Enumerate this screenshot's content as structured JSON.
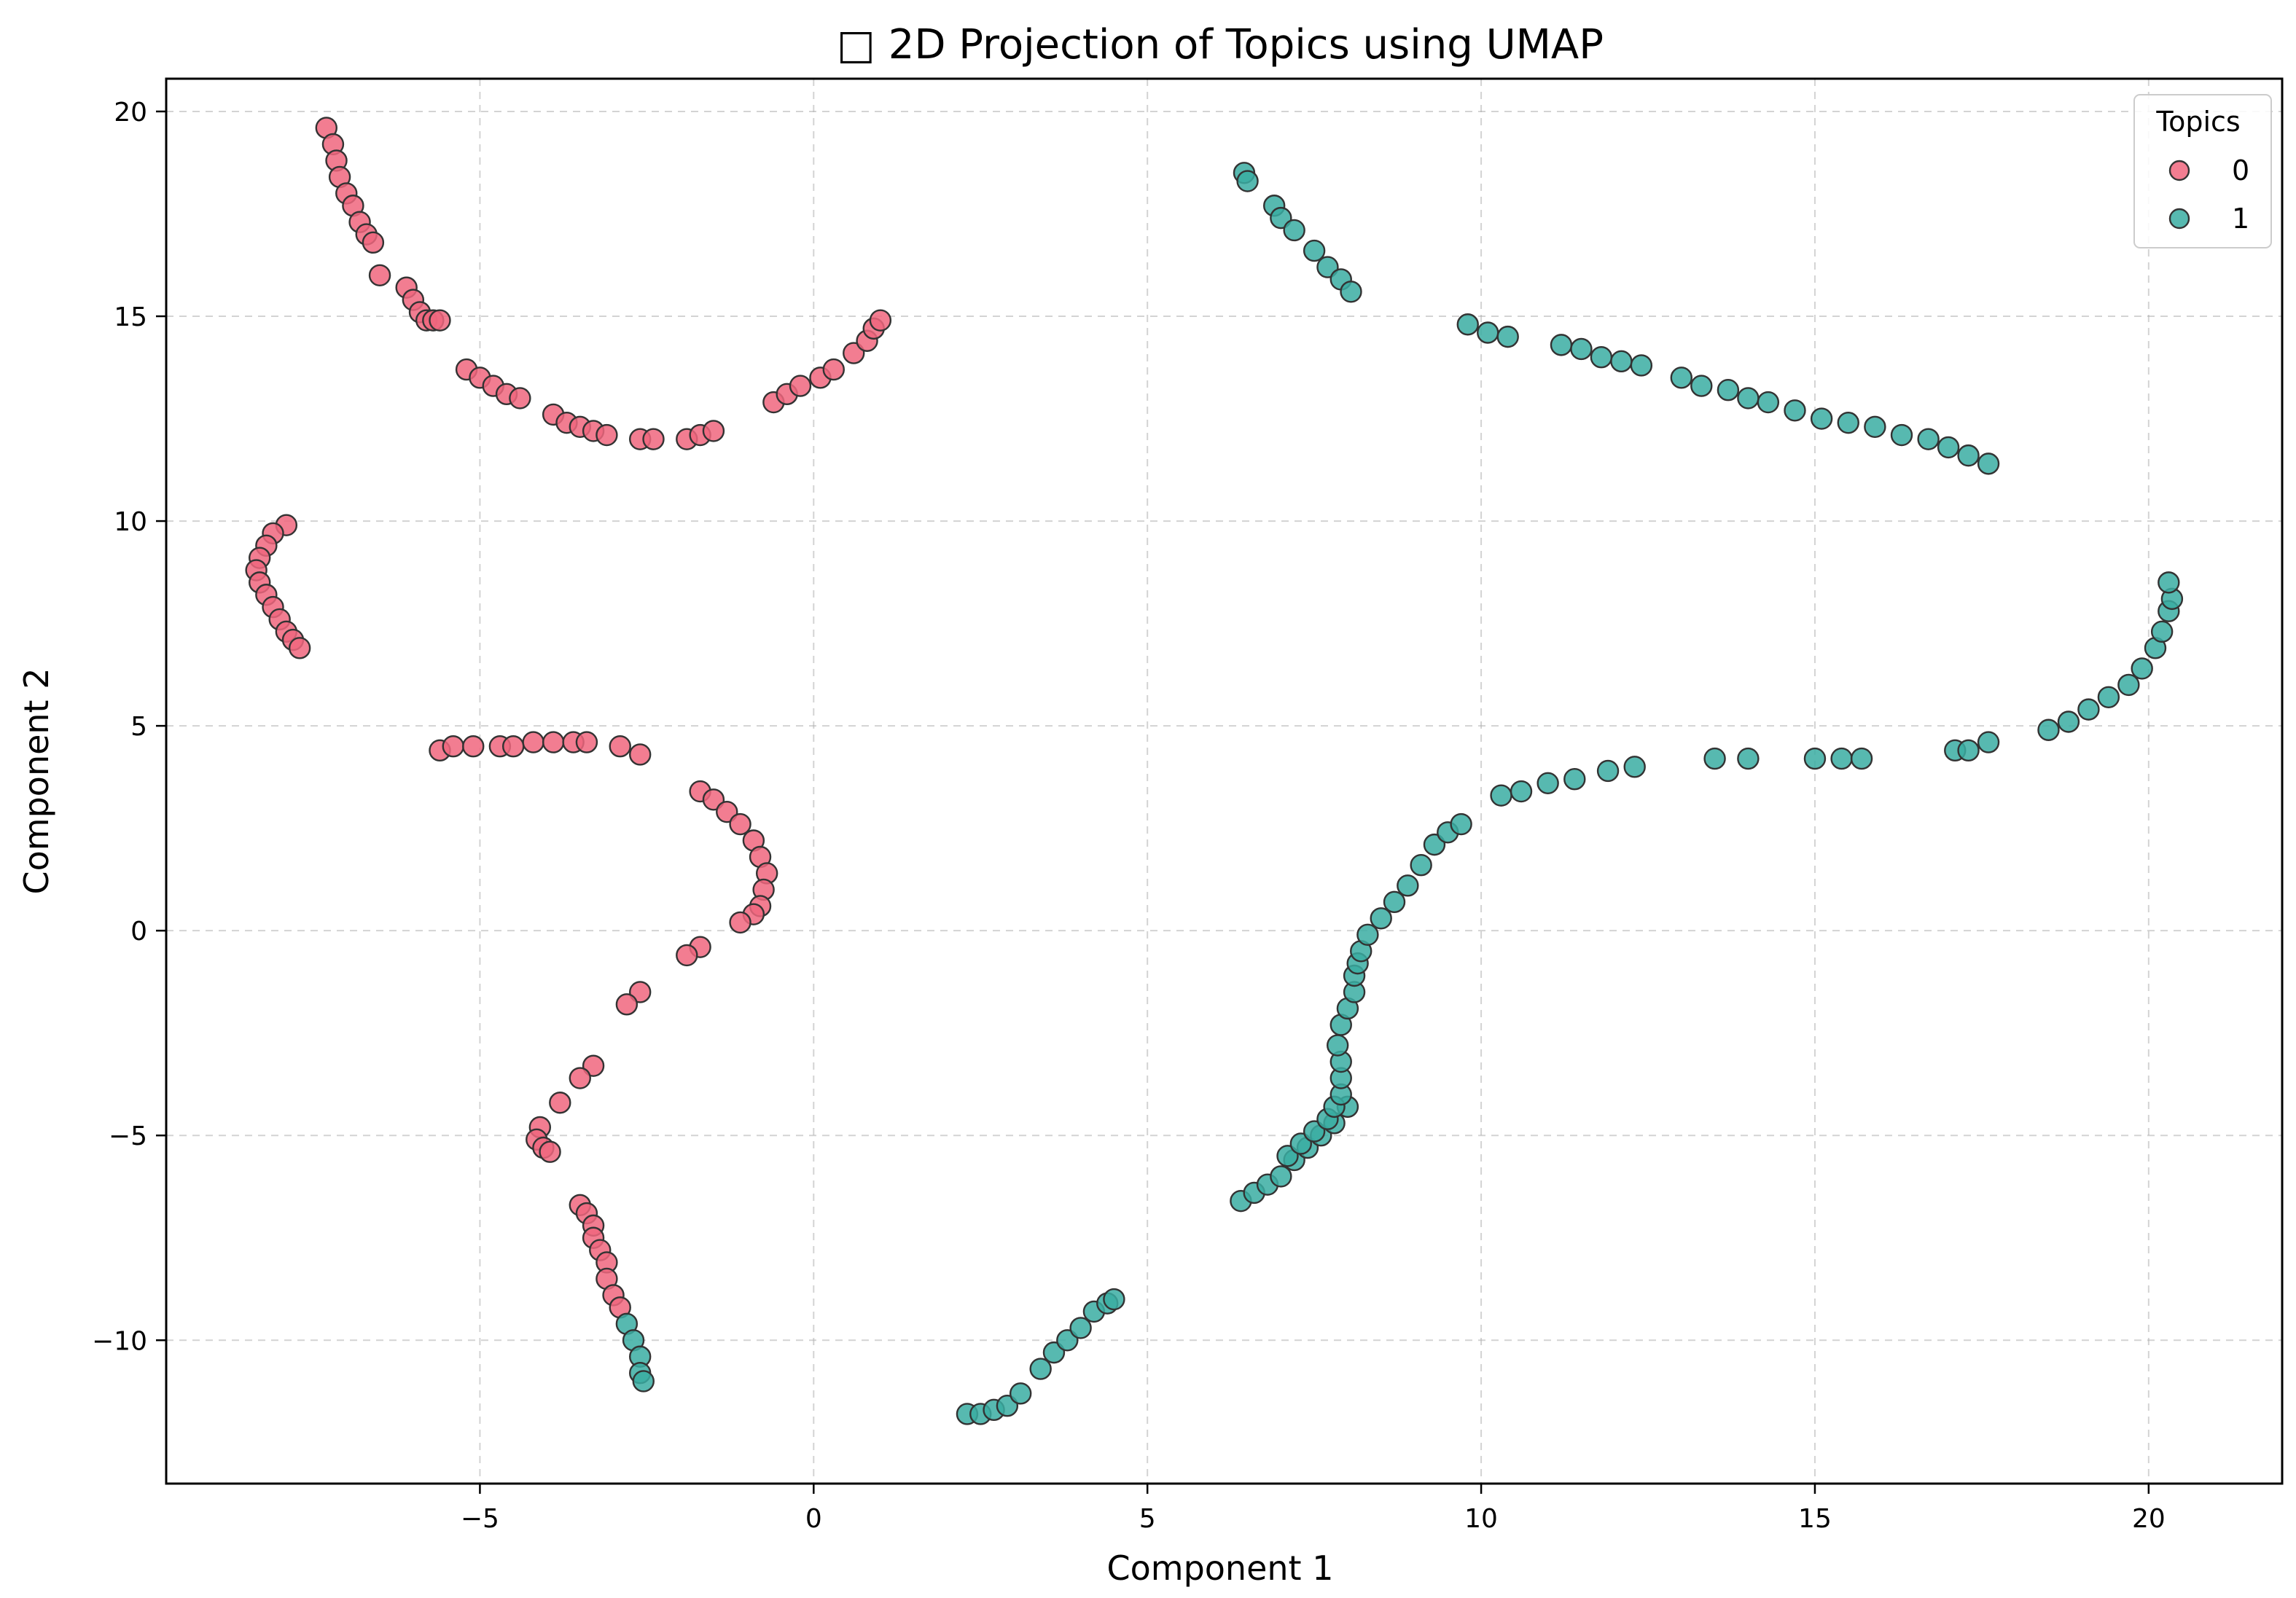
{
  "chart_data": {
    "type": "scatter",
    "title": "□ 2D Projection of Topics using UMAP",
    "xlabel": "Component 1",
    "ylabel": "Component 2",
    "xlim": [
      -9.7,
      22.0
    ],
    "ylim": [
      -13.5,
      20.8
    ],
    "xticks": [
      -5,
      0,
      5,
      10,
      15,
      20
    ],
    "yticks": [
      -10,
      -5,
      0,
      5,
      10,
      15,
      20
    ],
    "xtick_labels": [
      "−5",
      "0",
      "5",
      "10",
      "15",
      "20"
    ],
    "ytick_labels": [
      "−10",
      "−5",
      "0",
      "5",
      "10",
      "15",
      "20"
    ],
    "grid": true,
    "legend": {
      "title": "Topics",
      "placement": "top-right",
      "entries": [
        "0",
        "1"
      ]
    },
    "colors": {
      "0": "#f0667e",
      "1": "#3aada2"
    },
    "series": [
      {
        "name": "0",
        "color": "#f0667e",
        "x": [
          -7.3,
          -7.2,
          -7.15,
          -7.1,
          -7.0,
          -6.9,
          -6.8,
          -6.7,
          -6.6,
          -6.5,
          -6.1,
          -6.0,
          -5.9,
          -5.8,
          -5.7,
          -5.6,
          -5.2,
          -5.0,
          -4.8,
          -4.6,
          -4.4,
          -3.9,
          -3.7,
          -3.5,
          -3.3,
          -3.1,
          -2.6,
          -2.4,
          -1.9,
          -1.7,
          -1.5,
          -0.6,
          -0.4,
          -0.2,
          0.1,
          0.3,
          0.6,
          0.8,
          0.9,
          1.0,
          -7.9,
          -8.1,
          -8.2,
          -8.3,
          -8.35,
          -8.3,
          -8.2,
          -8.1,
          -8.0,
          -7.9,
          -7.8,
          -7.7,
          -5.6,
          -5.4,
          -5.1,
          -4.7,
          -4.5,
          -4.2,
          -3.9,
          -3.6,
          -3.4,
          -2.9,
          -2.6,
          -1.7,
          -1.5,
          -1.3,
          -1.1,
          -0.9,
          -0.8,
          -0.7,
          -0.75,
          -0.8,
          -0.9,
          -1.1,
          -1.7,
          -1.9,
          -2.6,
          -2.8,
          -3.3,
          -3.5,
          -3.8,
          -4.1,
          -4.15,
          -4.05,
          -3.95,
          -3.5,
          -3.4,
          -3.3,
          -3.3,
          -3.2,
          -3.1,
          -3.1,
          -3.0,
          -2.9
        ],
        "y": [
          19.6,
          19.2,
          18.8,
          18.4,
          18.0,
          17.7,
          17.3,
          17.0,
          16.8,
          16.0,
          15.7,
          15.4,
          15.1,
          14.9,
          14.9,
          14.9,
          13.7,
          13.5,
          13.3,
          13.1,
          13.0,
          12.6,
          12.4,
          12.3,
          12.2,
          12.1,
          12.0,
          12.0,
          12.0,
          12.1,
          12.2,
          12.9,
          13.1,
          13.3,
          13.5,
          13.7,
          14.1,
          14.4,
          14.7,
          14.9,
          9.9,
          9.7,
          9.4,
          9.1,
          8.8,
          8.5,
          8.2,
          7.9,
          7.6,
          7.3,
          7.1,
          6.9,
          4.4,
          4.5,
          4.5,
          4.5,
          4.5,
          4.6,
          4.6,
          4.6,
          4.6,
          4.5,
          4.3,
          3.4,
          3.2,
          2.9,
          2.6,
          2.2,
          1.8,
          1.4,
          1.0,
          0.6,
          0.4,
          0.2,
          -0.4,
          -0.6,
          -1.5,
          -1.8,
          -3.3,
          -3.6,
          -4.2,
          -4.8,
          -5.1,
          -5.3,
          -5.4,
          -6.7,
          -6.9,
          -7.2,
          -7.5,
          -7.8,
          -8.1,
          -8.5,
          -8.9,
          -9.2
        ]
      },
      {
        "name": "1",
        "color": "#3aada2",
        "x": [
          -2.8,
          -2.7,
          -2.6,
          -2.6,
          -2.55,
          2.3,
          2.5,
          2.7,
          2.9,
          3.1,
          3.4,
          3.6,
          3.8,
          4.0,
          4.2,
          4.4,
          4.5,
          6.4,
          6.6,
          6.8,
          7.0,
          7.2,
          7.4,
          7.6,
          7.8,
          8.0,
          6.45,
          6.5,
          6.9,
          7.0,
          7.2,
          7.5,
          7.7,
          7.9,
          8.05,
          9.8,
          10.1,
          10.4,
          11.2,
          11.5,
          11.8,
          12.1,
          12.4,
          13.0,
          13.3,
          13.7,
          14.0,
          14.3,
          14.7,
          15.1,
          15.5,
          15.9,
          16.3,
          16.7,
          17.0,
          17.3,
          17.6,
          7.1,
          7.3,
          7.5,
          7.7,
          7.8,
          7.9,
          7.9,
          7.9,
          7.85,
          7.9,
          8.0,
          8.1,
          8.1,
          8.15,
          8.2,
          8.3,
          8.5,
          8.7,
          8.9,
          9.1,
          9.3,
          9.5,
          9.7,
          10.3,
          10.6,
          11.0,
          11.4,
          11.9,
          12.3,
          13.5,
          14.0,
          15.0,
          15.4,
          15.7,
          17.1,
          17.3,
          17.6,
          18.5,
          18.8,
          19.1,
          19.4,
          19.7,
          19.9,
          20.1,
          20.2,
          20.3,
          20.35,
          20.3
        ],
        "y": [
          -9.6,
          -10.0,
          -10.4,
          -10.8,
          -11.0,
          -11.8,
          -11.8,
          -11.7,
          -11.6,
          -11.3,
          -10.7,
          -10.3,
          -10.0,
          -9.7,
          -9.3,
          -9.1,
          -9.0,
          -6.6,
          -6.4,
          -6.2,
          -6.0,
          -5.6,
          -5.3,
          -5.0,
          -4.7,
          -4.3,
          18.5,
          18.3,
          17.7,
          17.4,
          17.1,
          16.6,
          16.2,
          15.9,
          15.6,
          14.8,
          14.6,
          14.5,
          14.3,
          14.2,
          14.0,
          13.9,
          13.8,
          13.5,
          13.3,
          13.2,
          13.0,
          12.9,
          12.7,
          12.5,
          12.4,
          12.3,
          12.1,
          12.0,
          11.8,
          11.6,
          11.4,
          -5.5,
          -5.2,
          -4.9,
          -4.6,
          -4.3,
          -4.0,
          -3.6,
          -3.2,
          -2.8,
          -2.3,
          -1.9,
          -1.5,
          -1.1,
          -0.8,
          -0.5,
          -0.1,
          0.3,
          0.7,
          1.1,
          1.6,
          2.1,
          2.4,
          2.6,
          3.3,
          3.4,
          3.6,
          3.7,
          3.9,
          4.0,
          4.2,
          4.2,
          4.2,
          4.2,
          4.2,
          4.4,
          4.4,
          4.6,
          4.9,
          5.1,
          5.4,
          5.7,
          6.0,
          6.4,
          6.9,
          7.3,
          7.8,
          8.1,
          8.5
        ]
      }
    ]
  }
}
